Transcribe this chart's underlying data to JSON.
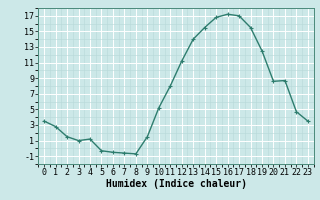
{
  "x": [
    0,
    1,
    2,
    3,
    4,
    5,
    6,
    7,
    8,
    9,
    10,
    11,
    12,
    13,
    14,
    15,
    16,
    17,
    18,
    19,
    20,
    21,
    22,
    23
  ],
  "y": [
    3.5,
    2.8,
    1.5,
    1.0,
    1.2,
    -0.3,
    -0.5,
    -0.6,
    -0.7,
    1.5,
    5.2,
    8.0,
    11.2,
    14.0,
    15.5,
    16.8,
    17.2,
    17.0,
    15.5,
    12.5,
    8.6,
    8.7,
    4.7,
    3.5
  ],
  "line_color": "#2e7d6e",
  "marker": "+",
  "marker_color": "#2e7d6e",
  "bg_color": "#cce8e8",
  "grid_major_color": "#ffffff",
  "grid_minor_color": "#b8d8d8",
  "xlabel": "Humidex (Indice chaleur)",
  "xlim": [
    -0.5,
    23.5
  ],
  "ylim": [
    -2,
    18
  ],
  "yticks": [
    -1,
    1,
    3,
    5,
    7,
    9,
    11,
    13,
    15,
    17
  ],
  "xticks": [
    0,
    1,
    2,
    3,
    4,
    5,
    6,
    7,
    8,
    9,
    10,
    11,
    12,
    13,
    14,
    15,
    16,
    17,
    18,
    19,
    20,
    21,
    22,
    23
  ],
  "xlabel_fontsize": 7,
  "tick_fontsize": 6,
  "linewidth": 1.0,
  "markersize": 3
}
